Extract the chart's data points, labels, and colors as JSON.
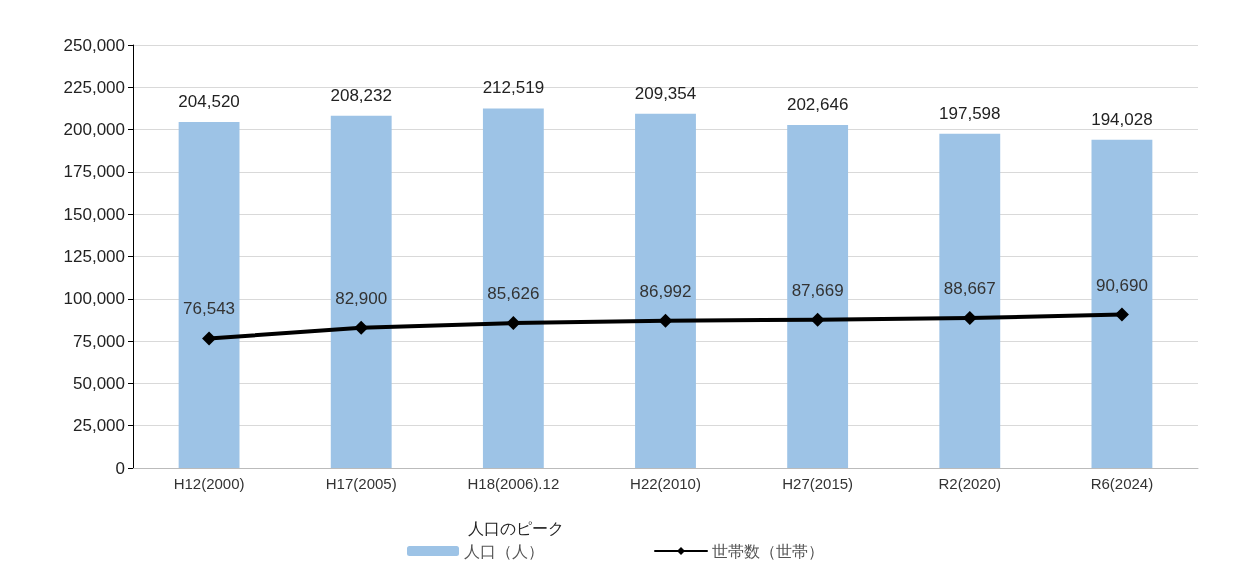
{
  "chart_data": {
    "type": "bar",
    "categories": [
      "H12(2000)",
      "H17(2005)",
      "H18(2006).12",
      "H22(2010)",
      "H27(2015)",
      "R2(2020)",
      "R6(2024)"
    ],
    "series": [
      {
        "name": "人口（人）",
        "color": "#9dc3e6",
        "values": [
          204520,
          208232,
          212519,
          209354,
          202646,
          197598,
          194028
        ],
        "value_labels": [
          "204,520",
          "208,232",
          "212,519",
          "209,354",
          "202,646",
          "197,598",
          "194,028"
        ]
      },
      {
        "name": "世帯数（世帯）",
        "type": "line",
        "color": "#000000",
        "marker": "diamond",
        "values": [
          76543,
          82900,
          85626,
          86992,
          87669,
          88667,
          90690
        ],
        "value_labels": [
          "76,543",
          "82,900",
          "85,626",
          "86,992",
          "87,669",
          "88,667",
          "90,690"
        ]
      }
    ],
    "ylim": [
      0,
      250000
    ],
    "yticks": [
      {
        "value": 0,
        "label": "0"
      },
      {
        "value": 25000,
        "label": "25,000"
      },
      {
        "value": 50000,
        "label": "50,000"
      },
      {
        "value": 75000,
        "label": "75,000"
      },
      {
        "value": 100000,
        "label": "100,000"
      },
      {
        "value": 125000,
        "label": "125,000"
      },
      {
        "value": 150000,
        "label": "150,000"
      },
      {
        "value": 175000,
        "label": "175,000"
      },
      {
        "value": 200000,
        "label": "200,000"
      },
      {
        "value": 225000,
        "label": "225,000"
      },
      {
        "value": 250000,
        "label": "250,000"
      }
    ],
    "grid": "y",
    "legend": "bottom",
    "annotations": [
      "人口のピーク"
    ]
  }
}
